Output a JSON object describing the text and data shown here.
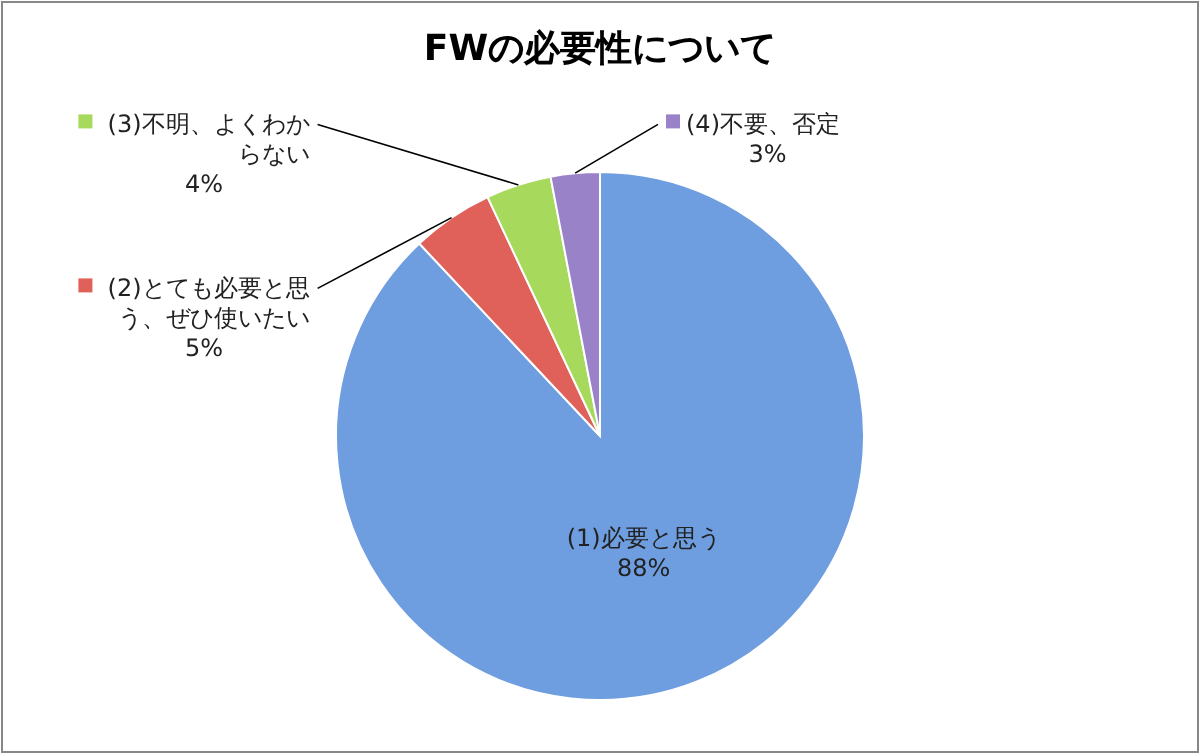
{
  "chart_data": {
    "type": "pie",
    "title": "FWの必要性について",
    "categories": [
      "(1)必要と思う",
      "(2)とても必要と思う、ぜひ使いたい",
      "(3)不明、よくわからない",
      "(4)不要、否定"
    ],
    "values": [
      88,
      5,
      4,
      3
    ],
    "value_labels": [
      "88%",
      "5%",
      "4%",
      "3%"
    ],
    "colors": [
      "#6f9ee0",
      "#e0605a",
      "#a6d95c",
      "#9a82c9"
    ],
    "legend": "top"
  }
}
